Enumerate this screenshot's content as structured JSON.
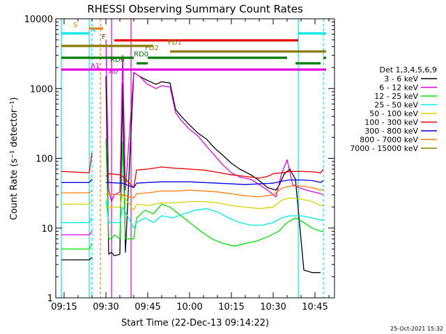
{
  "chart_data": {
    "type": "line",
    "title": "RHESSI Observing Summary Count Rates",
    "xlabel": "Start Time (22-Dec-13 09:14:22)",
    "ylabel": "Count Rate (s⁻¹ detector⁻¹)",
    "y_scale": "log",
    "xlim": [
      "09:12",
      "10:52"
    ],
    "ylim": [
      1,
      10000
    ],
    "x_ticks": [
      "09:15",
      "09:30",
      "09:45",
      "10:00",
      "10:15",
      "10:30",
      "10:45"
    ],
    "y_ticks": [
      "1",
      "10",
      "100",
      "1000",
      "10000"
    ],
    "timestamp": "25-Oct-2021 15:32",
    "legend": {
      "placement": "right",
      "title": "Det 1,3,4,5,6,9",
      "entries": [
        {
          "label": "3 - 6 keV",
          "color": "#000000"
        },
        {
          "label": "6 - 12 keV",
          "color": "#e000e0"
        },
        {
          "label": "12 - 25 keV",
          "color": "#00e000"
        },
        {
          "label": "25 - 50 keV",
          "color": "#00e8e8"
        },
        {
          "label": "50 - 100 keV",
          "color": "#d8d000"
        },
        {
          "label": "100 - 300 keV",
          "color": "#e80000"
        },
        {
          "label": "300 - 800 keV",
          "color": "#0000e0"
        },
        {
          "label": "800 - 7000 keV",
          "color": "#ff7a00"
        },
        {
          "label": "7000 - 15000 keV",
          "color": "#8a7a00"
        }
      ]
    },
    "series": [
      {
        "name": "3 - 6 keV",
        "color": "#000000",
        "x": [
          "09:14",
          "09:24",
          "09:25",
          "09:27",
          "09:29",
          "09:30",
          "09:31",
          "09:32",
          "09:33",
          "09:35",
          "09:36",
          "09:37",
          "09:40",
          "09:42",
          "09:45",
          "09:48",
          "09:50",
          "09:53",
          "09:55",
          "09:57",
          "10:00",
          "10:03",
          "10:06",
          "10:09",
          "10:12",
          "10:15",
          "10:18",
          "10:22",
          "10:25",
          "10:28",
          "10:31",
          "10:32",
          "10:34",
          "10:36",
          "10:38",
          "10:41",
          "10:44",
          "10:47"
        ],
        "y": [
          3.5,
          3.5,
          3.8,
          null,
          null,
          1500,
          4.2,
          4.5,
          4.0,
          4.2,
          1200,
          4.5,
          1700,
          1500,
          1300,
          1150,
          1250,
          1200,
          500,
          400,
          300,
          230,
          190,
          140,
          110,
          85,
          70,
          58,
          48,
          38,
          35,
          40,
          60,
          70,
          50,
          2.5,
          2.3,
          2.3
        ]
      },
      {
        "name": "6 - 12 keV",
        "color": "#e000e0",
        "x": [
          "09:14",
          "09:24",
          "09:25",
          "09:27",
          "09:29",
          "09:30",
          "09:31",
          "09:32",
          "09:33",
          "09:35",
          "09:36",
          "09:37",
          "09:40",
          "09:42",
          "09:45",
          "09:48",
          "09:50",
          "09:53",
          "09:55",
          "09:57",
          "10:00",
          "10:03",
          "10:06",
          "10:09",
          "10:12",
          "10:15",
          "10:18",
          "10:22",
          "10:25",
          "10:28",
          "10:31",
          "10:33",
          "10:35",
          "10:37",
          "10:40",
          "10:43",
          "10:46",
          "10:48"
        ],
        "y": [
          8,
          8,
          9,
          null,
          null,
          5000,
          35,
          24,
          30,
          33,
          3000,
          35,
          1700,
          1500,
          1150,
          1000,
          1100,
          1050,
          450,
          350,
          260,
          210,
          150,
          110,
          80,
          62,
          54,
          50,
          42,
          35,
          28,
          60,
          95,
          42,
          37,
          34,
          32,
          30
        ]
      },
      {
        "name": "12 - 25 keV",
        "color": "#00e000",
        "x": [
          "09:14",
          "09:24",
          "09:25",
          "09:27",
          "09:29",
          "09:30",
          "09:31",
          "09:32",
          "09:33",
          "09:35",
          "09:36",
          "09:37",
          "09:40",
          "09:41",
          "09:44",
          "09:47",
          "09:50",
          "09:53",
          "09:56",
          "10:00",
          "10:04",
          "10:08",
          "10:12",
          "10:16",
          "10:20",
          "10:24",
          "10:28",
          "10:32",
          "10:35",
          "10:38",
          "10:41",
          "10:44",
          "10:47",
          "10:48"
        ],
        "y": [
          5,
          5,
          6,
          null,
          null,
          190,
          7,
          7,
          8,
          7,
          170,
          7,
          7,
          14,
          18,
          16,
          22,
          20,
          16,
          12,
          9,
          7,
          6,
          5.5,
          6,
          6.5,
          7.5,
          9,
          12,
          14,
          12,
          10,
          9,
          9
        ]
      },
      {
        "name": "25 - 50 keV",
        "color": "#00e8e8",
        "x": [
          "09:14",
          "09:24",
          "09:25",
          "09:27",
          "09:29",
          "09:30",
          "09:31",
          "09:35",
          "09:36",
          "09:40",
          "09:41",
          "09:44",
          "09:47",
          "09:50",
          "09:54",
          "09:58",
          "10:02",
          "10:06",
          "10:10",
          "10:14",
          "10:18",
          "10:22",
          "10:26",
          "10:30",
          "10:33",
          "10:36",
          "10:40",
          "10:44",
          "10:47",
          "10:48"
        ],
        "y": [
          12,
          12,
          14,
          null,
          null,
          25,
          12,
          12,
          20,
          10,
          12,
          14,
          12,
          15,
          14,
          16,
          18,
          19,
          17,
          14,
          12,
          11,
          11,
          12,
          14,
          15,
          15,
          14,
          13,
          13
        ]
      },
      {
        "name": "50 - 100 keV",
        "color": "#d8d000",
        "x": [
          "09:14",
          "09:24",
          "09:25",
          "09:27",
          "09:29",
          "09:30",
          "09:31",
          "09:35",
          "09:36",
          "09:40",
          "09:41",
          "09:45",
          "09:50",
          "09:55",
          "10:00",
          "10:05",
          "10:10",
          "10:15",
          "10:20",
          "10:25",
          "10:30",
          "10:33",
          "10:36",
          "10:40",
          "10:44",
          "10:47",
          "10:48"
        ],
        "y": [
          22,
          22,
          24,
          null,
          null,
          20,
          20,
          20,
          30,
          18,
          22,
          21,
          23,
          23,
          24,
          24,
          23,
          21,
          20,
          19,
          20,
          25,
          27,
          26,
          24,
          21,
          21
        ]
      },
      {
        "name": "100 - 300 keV",
        "color": "#e80000",
        "x": [
          "09:14",
          "09:24",
          "09:25",
          "09:27",
          "09:29",
          "09:30",
          "09:31",
          "09:35",
          "09:36",
          "09:40",
          "09:41",
          "09:45",
          "09:50",
          "09:55",
          "10:00",
          "10:05",
          "10:10",
          "10:15",
          "10:20",
          "10:25",
          "10:28",
          "10:30",
          "10:33",
          "10:36",
          "10:40",
          "10:44",
          "10:47",
          "10:48"
        ],
        "y": [
          65,
          62,
          120,
          null,
          null,
          55,
          60,
          58,
          55,
          38,
          68,
          70,
          75,
          72,
          70,
          68,
          63,
          58,
          55,
          52,
          55,
          60,
          62,
          65,
          65,
          64,
          62,
          70
        ]
      },
      {
        "name": "300 - 800 keV",
        "color": "#0000e0",
        "x": [
          "09:14",
          "09:24",
          "09:25",
          "09:27",
          "09:29",
          "09:30",
          "09:31",
          "09:35",
          "09:36",
          "09:40",
          "09:41",
          "09:45",
          "09:50",
          "09:55",
          "10:00",
          "10:05",
          "10:10",
          "10:15",
          "10:20",
          "10:25",
          "10:30",
          "10:33",
          "10:36",
          "10:40",
          "10:44",
          "10:47",
          "10:48"
        ],
        "y": [
          45,
          45,
          50,
          null,
          null,
          45,
          45,
          44,
          44,
          38,
          44,
          45,
          46,
          46,
          46,
          45,
          44,
          43,
          42,
          43,
          44,
          47,
          49,
          49,
          48,
          45,
          48
        ]
      },
      {
        "name": "800 - 7000 keV",
        "color": "#ff7a00",
        "x": [
          "09:14",
          "09:24",
          "09:25",
          "09:27",
          "09:29",
          "09:30",
          "09:31",
          "09:35",
          "09:36",
          "09:40",
          "09:41",
          "09:45",
          "09:50",
          "09:55",
          "10:00",
          "10:05",
          "10:10",
          "10:15",
          "10:20",
          "10:25",
          "10:30",
          "10:33",
          "10:36",
          "10:40",
          "10:44",
          "10:47",
          "10:48"
        ],
        "y": [
          32,
          32,
          34,
          null,
          null,
          30,
          31,
          30,
          30,
          27,
          31,
          32,
          34,
          34,
          35,
          34,
          33,
          31,
          29,
          28,
          30,
          37,
          40,
          40,
          38,
          35,
          36
        ]
      },
      {
        "name": "7000 - 15000 keV",
        "color": "#8a7a00",
        "x": [
          "09:14",
          "10:48"
        ],
        "y": [
          null,
          null
        ]
      }
    ],
    "flag_bars": [
      {
        "label": "S",
        "color": "#ff7a00",
        "segments": [
          [
            "09:24",
            "09:29"
          ]
        ]
      },
      {
        "label": "N",
        "color": "#00e8e8",
        "segments": [
          [
            "09:14",
            "09:24"
          ],
          [
            "10:39",
            "10:49"
          ]
        ]
      },
      {
        "label": "F",
        "color": "#e80000",
        "segments": [
          [
            "09:33",
            "10:39"
          ]
        ]
      },
      {
        "label": "FD1",
        "color": "#8a7a00",
        "segments": [
          [
            "09:14",
            "09:47"
          ]
        ]
      },
      {
        "label": "FD2",
        "color": "#8a7a00",
        "segments": [
          [
            "09:53",
            "10:49"
          ]
        ]
      },
      {
        "label": "RD0",
        "color": "#007a00",
        "segments": [
          [
            "09:14",
            "09:40"
          ],
          [
            "09:45",
            "10:35"
          ],
          [
            "10:48",
            "10:49"
          ]
        ]
      },
      {
        "label": "RD6",
        "color": "#007a00",
        "segments": [
          [
            "09:41",
            "09:45"
          ],
          [
            "10:38",
            "10:47"
          ]
        ]
      },
      {
        "label": "A1",
        "color": "#e000e0",
        "segments": [
          [
            "09:14",
            "10:49"
          ]
        ]
      },
      {
        "label": "A0",
        "color": "#e000e0",
        "segments": []
      }
    ],
    "vertical_markers": [
      {
        "time": "09:14",
        "color": "#00e8e8",
        "style": "solid"
      },
      {
        "time": "09:24",
        "color": "#00e8e8",
        "style": "solid"
      },
      {
        "time": "09:25",
        "color": "#00e8e8",
        "style": "dashed"
      },
      {
        "time": "09:28",
        "color": "#ff7a00",
        "style": "dashed"
      },
      {
        "time": "09:32",
        "color": "#e000e0",
        "style": "solid"
      },
      {
        "time": "09:39",
        "color": "#e000e0",
        "style": "solid"
      },
      {
        "time": "10:39",
        "color": "#00e8e8",
        "style": "solid"
      },
      {
        "time": "10:48",
        "color": "#00e8e8",
        "style": "dashed"
      }
    ]
  }
}
